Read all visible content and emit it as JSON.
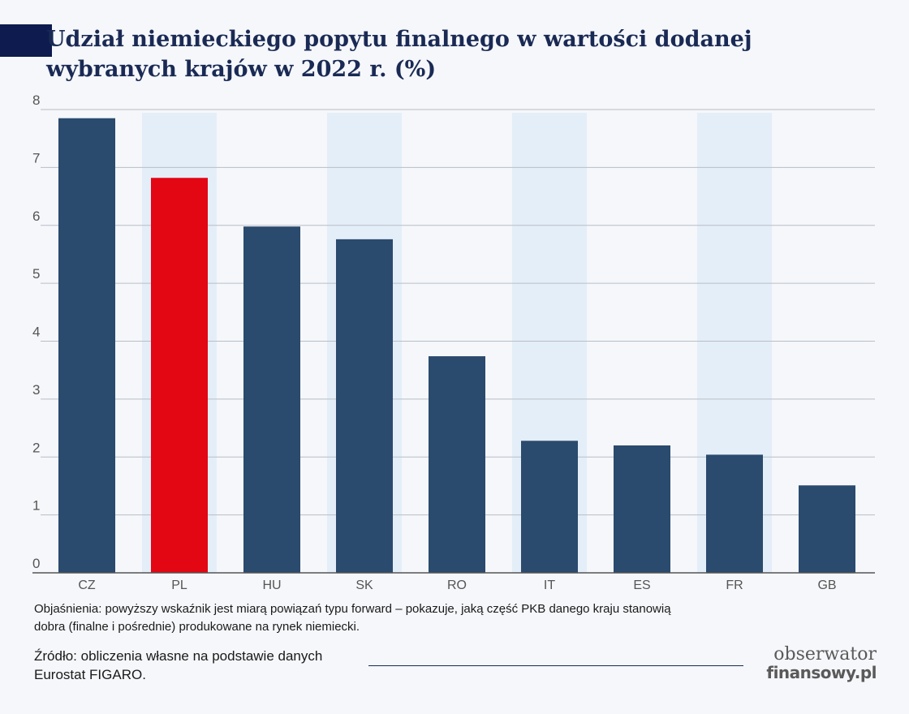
{
  "header": {
    "title": "Udział niemieckiego popytu finalnego w wartości dodanej wybranych krajów w 2022 r. (%)"
  },
  "chart_data": {
    "type": "bar",
    "title": "Udział niemieckiego popytu finalnego w wartości dodanej wybranych krajów w 2022 r. (%)",
    "categories": [
      "CZ",
      "PL",
      "HU",
      "SK",
      "RO",
      "IT",
      "ES",
      "FR",
      "GB"
    ],
    "values": [
      7.85,
      6.82,
      5.98,
      5.76,
      3.74,
      2.28,
      2.2,
      2.04,
      1.51
    ],
    "highlight": "PL",
    "ylim": [
      0,
      8
    ],
    "yticks": [
      0,
      1,
      2,
      3,
      4,
      5,
      6,
      7,
      8
    ],
    "grid": true,
    "shaded_columns": [
      "PL",
      "SK",
      "IT",
      "FR"
    ],
    "colors": {
      "bar": "#2a4a6e",
      "highlight": "#e30613",
      "shade": "#e4eef8",
      "grid": "#b8bec6",
      "axis": "#555555",
      "tick_text": "#555555"
    }
  },
  "footer": {
    "note": "Objaśnienia: powyższy wskaźnik jest miarą powiązań typu forward – pokazuje, jaką część PKB danego kraju stanowią dobra (finalne i pośrednie) produkowane na rynek niemiecki.",
    "source": "Źródło: obliczenia własne na podstawie danych Eurostat FIGARO.",
    "logo_line1": "obserwator",
    "logo_line2": "finansowy.pl"
  }
}
